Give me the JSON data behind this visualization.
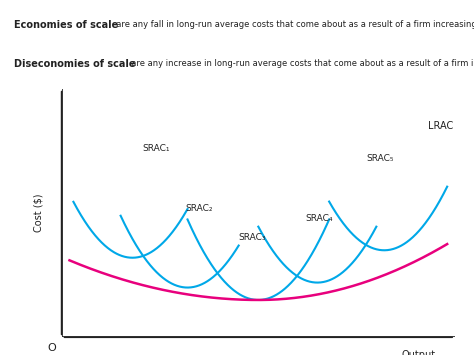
{
  "title_line1_bold": "Economies of scale",
  "title_line1_text": "  are any fall in long-run average costs that come about as a result of a firm increasing its scale of production.",
  "title_line2_bold": "Diseconomies of scale",
  "title_line2_text": "  are any increase in long-run average costs that come about as a result of a firm increasing its scale of production.",
  "ylabel": "Cost ($)",
  "xlabel": "Output",
  "origin_label": "O",
  "lrac_label": "LRAC",
  "srac_labels": [
    "SRAC₁",
    "SRAC₂",
    "SRAC₃",
    "SRAC₄",
    "SRAC₅"
  ],
  "lrac_color": "#e8007d",
  "srac_color": "#00a8e8",
  "background_color": "#ffffff",
  "axis_color": "#222222",
  "text_color": "#222222"
}
